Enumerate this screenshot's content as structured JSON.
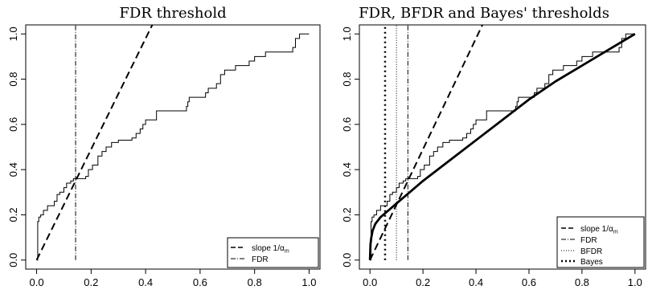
{
  "chart_data": [
    {
      "type": "line",
      "title": "FDR threshold",
      "xlabel": "",
      "ylabel": "",
      "xlim": [
        -0.04,
        1.04
      ],
      "ylim": [
        -0.04,
        1.04
      ],
      "xticks": [
        0.0,
        0.2,
        0.4,
        0.6,
        0.8,
        1.0
      ],
      "yticks": [
        0.0,
        0.2,
        0.4,
        0.6,
        0.8,
        1.0
      ],
      "x_tick_labels": [
        "0.0",
        "0.2",
        "0.4",
        "0.6",
        "0.8",
        "1.0"
      ],
      "y_tick_labels": [
        "0.0",
        "0.2",
        "0.4",
        "0.6",
        "0.8",
        "1.0"
      ],
      "grid": false,
      "legend_position": "bottom-right",
      "ecdf": {
        "style": "step",
        "points": [
          [
            0.0,
            0.0
          ],
          [
            0.004,
            0.17
          ],
          [
            0.008,
            0.19
          ],
          [
            0.015,
            0.2
          ],
          [
            0.025,
            0.22
          ],
          [
            0.04,
            0.24
          ],
          [
            0.065,
            0.26
          ],
          [
            0.075,
            0.29
          ],
          [
            0.085,
            0.3
          ],
          [
            0.1,
            0.32
          ],
          [
            0.11,
            0.34
          ],
          [
            0.125,
            0.35
          ],
          [
            0.135,
            0.36
          ],
          [
            0.18,
            0.37
          ],
          [
            0.19,
            0.4
          ],
          [
            0.205,
            0.42
          ],
          [
            0.225,
            0.46
          ],
          [
            0.24,
            0.48
          ],
          [
            0.255,
            0.5
          ],
          [
            0.275,
            0.52
          ],
          [
            0.3,
            0.53
          ],
          [
            0.35,
            0.54
          ],
          [
            0.365,
            0.56
          ],
          [
            0.38,
            0.58
          ],
          [
            0.39,
            0.6
          ],
          [
            0.4,
            0.62
          ],
          [
            0.44,
            0.66
          ],
          [
            0.55,
            0.68
          ],
          [
            0.555,
            0.7
          ],
          [
            0.56,
            0.72
          ],
          [
            0.62,
            0.74
          ],
          [
            0.63,
            0.76
          ],
          [
            0.66,
            0.78
          ],
          [
            0.675,
            0.82
          ],
          [
            0.69,
            0.84
          ],
          [
            0.73,
            0.86
          ],
          [
            0.78,
            0.88
          ],
          [
            0.8,
            0.9
          ],
          [
            0.84,
            0.92
          ],
          [
            0.94,
            0.94
          ],
          [
            0.95,
            0.98
          ],
          [
            0.965,
            1.0
          ],
          [
            1.0,
            1.0
          ]
        ]
      },
      "series": [
        {
          "name": "slope 1/α",
          "name_subscript": "m",
          "type": "line",
          "slope": 2.45,
          "dash": "long-dash"
        },
        {
          "name": "FDR",
          "type": "vline",
          "x": 0.143,
          "dash": "dash-dot"
        }
      ]
    },
    {
      "type": "line",
      "title": "FDR, BFDR and Bayes' thresholds",
      "xlabel": "",
      "ylabel": "",
      "xlim": [
        -0.04,
        1.04
      ],
      "ylim": [
        -0.04,
        1.04
      ],
      "xticks": [
        0.0,
        0.2,
        0.4,
        0.6,
        0.8,
        1.0
      ],
      "yticks": [
        0.0,
        0.2,
        0.4,
        0.6,
        0.8,
        1.0
      ],
      "x_tick_labels": [
        "0.0",
        "0.2",
        "0.4",
        "0.6",
        "0.8",
        "1.0"
      ],
      "y_tick_labels": [
        "0.0",
        "0.2",
        "0.4",
        "0.6",
        "0.8",
        "1.0"
      ],
      "grid": false,
      "legend_position": "bottom-right",
      "ecdf": {
        "style": "step",
        "points": [
          [
            0.0,
            0.0
          ],
          [
            0.004,
            0.17
          ],
          [
            0.008,
            0.19
          ],
          [
            0.015,
            0.2
          ],
          [
            0.025,
            0.22
          ],
          [
            0.04,
            0.24
          ],
          [
            0.065,
            0.26
          ],
          [
            0.075,
            0.29
          ],
          [
            0.085,
            0.3
          ],
          [
            0.1,
            0.32
          ],
          [
            0.11,
            0.34
          ],
          [
            0.125,
            0.35
          ],
          [
            0.135,
            0.36
          ],
          [
            0.18,
            0.37
          ],
          [
            0.19,
            0.4
          ],
          [
            0.205,
            0.42
          ],
          [
            0.225,
            0.46
          ],
          [
            0.24,
            0.48
          ],
          [
            0.255,
            0.5
          ],
          [
            0.275,
            0.52
          ],
          [
            0.3,
            0.53
          ],
          [
            0.35,
            0.54
          ],
          [
            0.365,
            0.56
          ],
          [
            0.38,
            0.58
          ],
          [
            0.39,
            0.6
          ],
          [
            0.4,
            0.62
          ],
          [
            0.44,
            0.66
          ],
          [
            0.55,
            0.68
          ],
          [
            0.555,
            0.7
          ],
          [
            0.56,
            0.72
          ],
          [
            0.62,
            0.74
          ],
          [
            0.63,
            0.76
          ],
          [
            0.66,
            0.78
          ],
          [
            0.675,
            0.82
          ],
          [
            0.69,
            0.84
          ],
          [
            0.73,
            0.86
          ],
          [
            0.78,
            0.88
          ],
          [
            0.8,
            0.9
          ],
          [
            0.84,
            0.92
          ],
          [
            0.94,
            0.94
          ],
          [
            0.95,
            0.98
          ],
          [
            0.965,
            1.0
          ],
          [
            1.0,
            1.0
          ]
        ]
      },
      "mixture_cdf": {
        "points": [
          [
            0.0,
            0.0
          ],
          [
            0.002,
            0.07
          ],
          [
            0.005,
            0.1
          ],
          [
            0.01,
            0.13
          ],
          [
            0.02,
            0.16
          ],
          [
            0.04,
            0.19
          ],
          [
            0.06,
            0.21
          ],
          [
            0.1,
            0.25
          ],
          [
            0.15,
            0.3
          ],
          [
            0.2,
            0.35
          ],
          [
            0.3,
            0.44
          ],
          [
            0.4,
            0.53
          ],
          [
            0.5,
            0.62
          ],
          [
            0.6,
            0.71
          ],
          [
            0.7,
            0.79
          ],
          [
            0.8,
            0.86
          ],
          [
            0.9,
            0.93
          ],
          [
            1.0,
            1.0
          ]
        ]
      },
      "series": [
        {
          "name": "slope 1/α",
          "name_subscript": "m",
          "type": "line",
          "slope": 2.45,
          "dash": "long-dash"
        },
        {
          "name": "FDR",
          "type": "vline",
          "x": 0.143,
          "dash": "dash-dot"
        },
        {
          "name": "BFDR",
          "type": "vline",
          "x": 0.1,
          "dash": "dotted"
        },
        {
          "name": "Bayes",
          "type": "vline",
          "x": 0.057,
          "dash": "heavy-dotted"
        }
      ]
    }
  ]
}
